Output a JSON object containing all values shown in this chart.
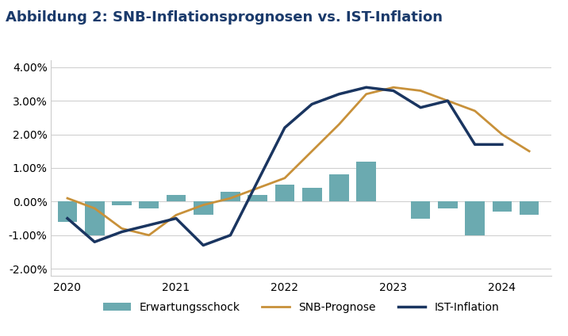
{
  "title": "Abbildung 2: SNB-Inflationsprognosen vs. IST-Inflation",
  "title_color": "#1a3a6b",
  "background_color": "#ffffff",
  "plot_background": "#ffffff",
  "grid_color": "#d0d0d0",
  "quarter_numeric": [
    2020.0,
    2020.25,
    2020.5,
    2020.75,
    2021.0,
    2021.25,
    2021.5,
    2021.75,
    2022.0,
    2022.25,
    2022.5,
    2022.75,
    2023.0,
    2023.25,
    2023.5,
    2023.75,
    2024.0,
    2024.25
  ],
  "snb_prognose": [
    0.001,
    -0.002,
    -0.008,
    -0.01,
    -0.004,
    -0.001,
    0.001,
    0.004,
    0.007,
    0.015,
    0.023,
    0.032,
    0.034,
    0.033,
    0.03,
    0.027,
    0.02,
    0.015
  ],
  "ist_inflation": [
    -0.005,
    -0.012,
    -0.009,
    -0.007,
    -0.005,
    -0.013,
    -0.01,
    0.006,
    0.022,
    0.029,
    0.032,
    0.034,
    0.033,
    0.028,
    0.03,
    0.017,
    0.017,
    null
  ],
  "erwartungsschock": [
    -0.006,
    -0.01,
    -0.001,
    -0.002,
    0.002,
    -0.004,
    0.003,
    0.002,
    0.005,
    0.004,
    0.008,
    0.012,
    0.0,
    -0.005,
    -0.002,
    -0.01,
    -0.003,
    -0.004
  ],
  "snb_color": "#c8913a",
  "ist_color": "#1a3560",
  "erwartung_color": "#6baab0",
  "ylim": [
    -0.022,
    0.042
  ],
  "yticks": [
    -0.02,
    -0.01,
    0.0,
    0.01,
    0.02,
    0.03,
    0.04
  ],
  "xticks": [
    2020.0,
    2021.0,
    2022.0,
    2023.0,
    2024.0
  ],
  "xlim": [
    2019.85,
    2024.45
  ],
  "legend_labels": [
    "Erwartungsschock",
    "SNB-Prognose",
    "IST-Inflation"
  ],
  "legend_colors": [
    "#6baab0",
    "#c8913a",
    "#1a3560"
  ],
  "snb_linewidth": 2.0,
  "ist_linewidth": 2.5,
  "bar_width": 0.18
}
